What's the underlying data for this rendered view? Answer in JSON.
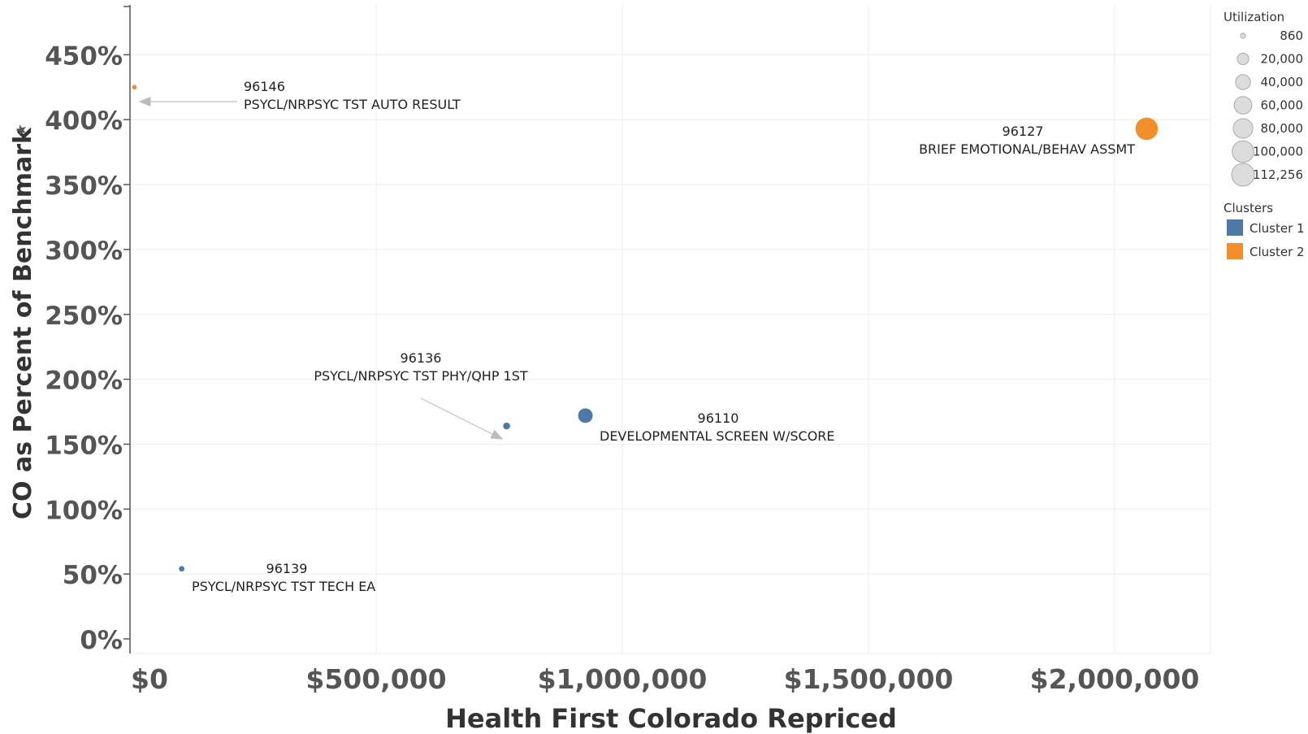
{
  "chart_data": {
    "type": "scatter",
    "xlabel": "Health First Colorado Repriced",
    "ylabel": "CO as Percent of Benchmark",
    "xlim": [
      0,
      2100000
    ],
    "ylim": [
      0,
      500
    ],
    "x_ticks": [
      {
        "value": 0,
        "label": "$0"
      },
      {
        "value": 500000,
        "label": "$500,000"
      },
      {
        "value": 1000000,
        "label": "$1,000,000"
      },
      {
        "value": 1500000,
        "label": "$1,500,000"
      },
      {
        "value": 2000000,
        "label": "$2,000,000"
      }
    ],
    "y_ticks": [
      {
        "value": 0,
        "label": "0%"
      },
      {
        "value": 50,
        "label": "50%"
      },
      {
        "value": 100,
        "label": "100%"
      },
      {
        "value": 150,
        "label": "150%"
      },
      {
        "value": 200,
        "label": "200%"
      },
      {
        "value": 250,
        "label": "250%"
      },
      {
        "value": 300,
        "label": "300%"
      },
      {
        "value": 350,
        "label": "350%"
      },
      {
        "value": 400,
        "label": "400%"
      },
      {
        "value": 450,
        "label": "450%"
      },
      {
        "value": 500,
        "label": "500%"
      }
    ],
    "grid": true,
    "points": [
      {
        "code": "96146",
        "description": "PSYCL/NRPSYC TST AUTO RESULT",
        "x": 9000,
        "y": 425,
        "utilization": 860,
        "cluster": "Cluster 2"
      },
      {
        "code": "96127",
        "description": "BRIEF EMOTIONAL/BEHAV ASSMT",
        "x": 2065000,
        "y": 393,
        "utilization": 112256,
        "cluster": "Cluster 2"
      },
      {
        "code": "96136",
        "description": "PSYCL/NRPSYC TST PHY/QHP 1ST",
        "x": 765000,
        "y": 164,
        "utilization": 5000,
        "cluster": "Cluster 1"
      },
      {
        "code": "96110",
        "description": "DEVELOPMENTAL SCREEN W/SCORE",
        "x": 925000,
        "y": 172,
        "utilization": 40000,
        "cluster": "Cluster 1"
      },
      {
        "code": "96139",
        "description": "PSYCL/NRPSYC TST TECH EA",
        "x": 105000,
        "y": 54,
        "utilization": 2000,
        "cluster": "Cluster 1"
      }
    ],
    "legend": {
      "placement": "right",
      "size_title": "Utilization",
      "size_entries": [
        {
          "value": 860,
          "label": "860"
        },
        {
          "value": 20000,
          "label": "20,000"
        },
        {
          "value": 40000,
          "label": "40,000"
        },
        {
          "value": 60000,
          "label": "60,000"
        },
        {
          "value": 80000,
          "label": "80,000"
        },
        {
          "value": 100000,
          "label": "100,000"
        },
        {
          "value": 112256,
          "label": "112,256"
        }
      ],
      "color_title": "Clusters",
      "color_entries": [
        {
          "name": "Cluster 1",
          "color": "#4e79a7"
        },
        {
          "name": "Cluster 2",
          "color": "#f28e2b"
        }
      ]
    }
  }
}
